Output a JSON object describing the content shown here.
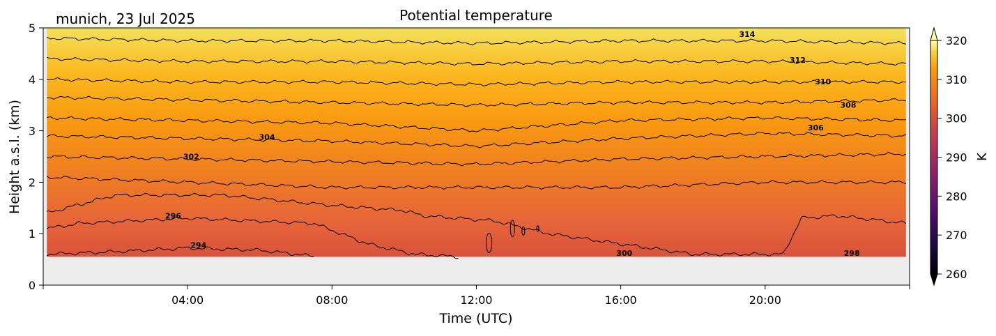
{
  "chart_data": {
    "type": "heatmap",
    "title": "Potential temperature",
    "subtitle": "munich, 23 Jul 2025",
    "xlabel": "Time (UTC)",
    "ylabel": "Height a.s.l. (km)",
    "xlim_hours": [
      0,
      24
    ],
    "ylim": [
      0,
      5
    ],
    "x_ticks": [
      "04:00",
      "08:00",
      "12:00",
      "16:00",
      "20:00"
    ],
    "y_ticks": [
      "0",
      "1",
      "2",
      "3",
      "4",
      "5"
    ],
    "data_bottom_km": 0.55,
    "colorbar": {
      "label": "K",
      "range": [
        260,
        320
      ],
      "ticks": [
        "260",
        "270",
        "280",
        "290",
        "300",
        "310",
        "320"
      ],
      "colormap": "inferno",
      "extend": "both"
    },
    "contour_levels": [
      294,
      296,
      298,
      300,
      302,
      304,
      306,
      308,
      310,
      312,
      314
    ],
    "contour_lines": [
      {
        "level": 294,
        "x": [
          0.1,
          2,
          4,
          6,
          7.5
        ],
        "y": [
          0.6,
          0.65,
          0.72,
          0.68,
          0.56
        ]
      },
      {
        "level": 296,
        "x": [
          0.1,
          1,
          4,
          7.5,
          9,
          10.3,
          11.5
        ],
        "y": [
          1.1,
          1.2,
          1.3,
          1.2,
          0.8,
          0.6,
          0.55
        ]
      },
      {
        "level": 298,
        "x": [
          0.1,
          2,
          5,
          8,
          10,
          10.5,
          12.5,
          14,
          16,
          18,
          20.5,
          21,
          22,
          23.9
        ],
        "y": [
          1.4,
          1.75,
          1.75,
          1.55,
          1.45,
          1.35,
          1.25,
          1.0,
          0.8,
          0.6,
          0.6,
          1.3,
          1.35,
          1.2
        ]
      },
      {
        "level": 300,
        "x": [
          0.1,
          4,
          8,
          12,
          16,
          20,
          23.9
        ],
        "y": [
          2.1,
          2.0,
          1.9,
          1.9,
          1.9,
          2.0,
          2.0
        ]
      },
      {
        "level": 302,
        "x": [
          0.1,
          4,
          8,
          12,
          16,
          20,
          23.9
        ],
        "y": [
          2.5,
          2.45,
          2.4,
          2.35,
          2.45,
          2.5,
          2.55
        ]
      },
      {
        "level": 304,
        "x": [
          0.1,
          4,
          8,
          12,
          16,
          20,
          23.9
        ],
        "y": [
          2.9,
          2.85,
          2.8,
          2.7,
          2.85,
          2.95,
          2.9
        ]
      },
      {
        "level": 306,
        "x": [
          0.1,
          4,
          8,
          12,
          16,
          20,
          23.9
        ],
        "y": [
          3.25,
          3.2,
          3.15,
          3.0,
          3.2,
          3.25,
          3.2
        ]
      },
      {
        "level": 308,
        "x": [
          0.1,
          4,
          8,
          12,
          16,
          20,
          23.9
        ],
        "y": [
          3.65,
          3.6,
          3.55,
          3.5,
          3.55,
          3.55,
          3.6
        ]
      },
      {
        "level": 310,
        "x": [
          0.1,
          4,
          8,
          12,
          16,
          20,
          23.9
        ],
        "y": [
          4.0,
          3.95,
          3.95,
          3.9,
          3.95,
          3.95,
          3.95
        ]
      },
      {
        "level": 312,
        "x": [
          0.1,
          4,
          8,
          12,
          16,
          20,
          23.9
        ],
        "y": [
          4.4,
          4.35,
          4.35,
          4.3,
          4.35,
          4.35,
          4.3
        ]
      },
      {
        "level": 314,
        "x": [
          0.1,
          4,
          8,
          12,
          16,
          20,
          23.9
        ],
        "y": [
          4.8,
          4.75,
          4.75,
          4.7,
          4.75,
          4.75,
          4.7
        ]
      }
    ],
    "contour_labels": [
      {
        "text": "294",
        "x": 4.3,
        "y": 0.78
      },
      {
        "text": "296",
        "x": 3.6,
        "y": 1.35
      },
      {
        "text": "298",
        "x": 22.4,
        "y": 0.62
      },
      {
        "text": "300",
        "x": 16.1,
        "y": 0.62
      },
      {
        "text": "302",
        "x": 4.1,
        "y": 2.5
      },
      {
        "text": "304",
        "x": 6.2,
        "y": 2.88
      },
      {
        "text": "306",
        "x": 21.4,
        "y": 3.06
      },
      {
        "text": "308",
        "x": 22.3,
        "y": 3.5
      },
      {
        "text": "310",
        "x": 21.6,
        "y": 3.96
      },
      {
        "text": "312",
        "x": 20.9,
        "y": 4.38
      },
      {
        "text": "314",
        "x": 19.5,
        "y": 4.88
      }
    ]
  }
}
